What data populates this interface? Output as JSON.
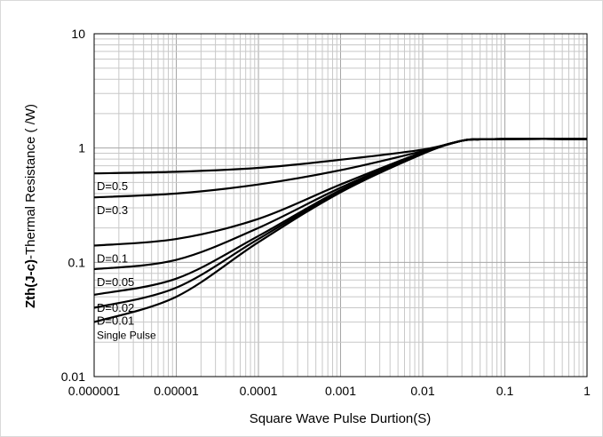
{
  "chart_data": {
    "type": "line",
    "ylabel_bold": "Zth(J-c)",
    "ylabel_rest": "-Thermal Resistance (   /W)",
    "xlabel": "Square Wave Pulse Durtion(S)",
    "x_scale": "log",
    "y_scale": "log",
    "xlim": [
      1e-06,
      1
    ],
    "ylim": [
      0.01,
      10
    ],
    "grid": true,
    "x_ticks": [
      {
        "value": 1e-06,
        "label": "0.000001"
      },
      {
        "value": 1e-05,
        "label": "0.00001"
      },
      {
        "value": 0.0001,
        "label": "0.0001"
      },
      {
        "value": 0.001,
        "label": "0.001"
      },
      {
        "value": 0.01,
        "label": "0.01"
      },
      {
        "value": 0.1,
        "label": "0.1"
      },
      {
        "value": 1,
        "label": "1"
      }
    ],
    "y_ticks": [
      {
        "value": 0.01,
        "label": "0.01"
      },
      {
        "value": 0.1,
        "label": "0.1"
      },
      {
        "value": 1,
        "label": "1"
      },
      {
        "value": 10,
        "label": "10"
      }
    ],
    "x": [
      1e-06,
      1e-05,
      0.0001,
      0.001,
      0.01,
      0.03,
      0.05,
      0.1,
      1
    ],
    "series": [
      {
        "name": "D=0.5",
        "values": [
          0.6,
          0.62,
          0.67,
          0.79,
          0.97,
          1.16,
          1.19,
          1.2,
          1.2
        ]
      },
      {
        "name": "D=0.3",
        "values": [
          0.37,
          0.4,
          0.48,
          0.64,
          0.94,
          1.16,
          1.19,
          1.2,
          1.2
        ]
      },
      {
        "name": "D=0.1",
        "values": [
          0.14,
          0.16,
          0.24,
          0.48,
          0.92,
          1.16,
          1.19,
          1.2,
          1.2
        ]
      },
      {
        "name": "D=0.05",
        "values": [
          0.087,
          0.105,
          0.2,
          0.45,
          0.91,
          1.16,
          1.19,
          1.2,
          1.2
        ]
      },
      {
        "name": "D=0.02",
        "values": [
          0.052,
          0.072,
          0.17,
          0.43,
          0.9,
          1.16,
          1.19,
          1.2,
          1.2
        ]
      },
      {
        "name": "D=0.01",
        "values": [
          0.04,
          0.06,
          0.16,
          0.42,
          0.9,
          1.16,
          1.19,
          1.2,
          1.2
        ]
      },
      {
        "name": "Single Pulse",
        "values": [
          0.03,
          0.05,
          0.15,
          0.41,
          0.89,
          1.16,
          1.19,
          1.2,
          1.2
        ]
      }
    ]
  }
}
